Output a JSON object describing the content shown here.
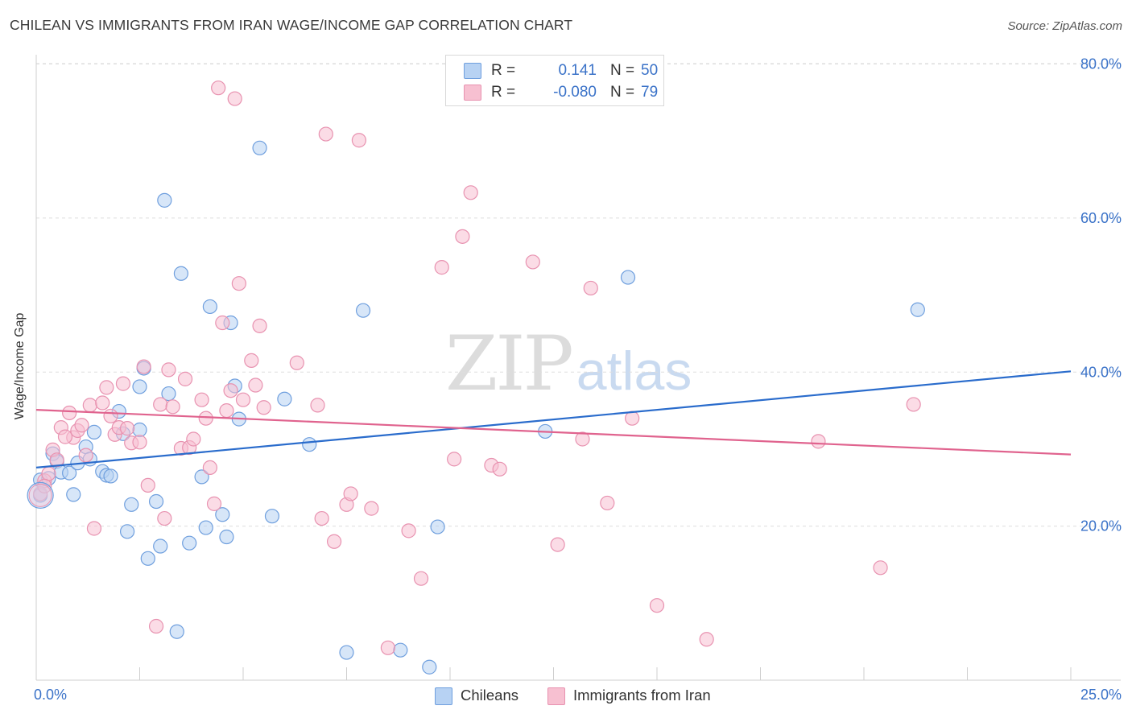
{
  "header": {
    "title": "CHILEAN VS IMMIGRANTS FROM IRAN WAGE/INCOME GAP CORRELATION CHART",
    "source": "Source: ZipAtlas.com"
  },
  "watermark": {
    "zip": "ZIP",
    "atlas": "atlas"
  },
  "legend": {
    "series1": {
      "r_label": "R =",
      "r_value": "0.141",
      "n_label": "N =",
      "n_value": "50"
    },
    "series2": {
      "r_label": "R =",
      "r_value": "-0.080",
      "n_label": "N =",
      "n_value": "79"
    }
  },
  "bottom_legend": {
    "series1": "Chileans",
    "series2": "Immigrants from Iran"
  },
  "colors": {
    "blue_fill": "#b7d2f3",
    "blue_stroke": "#6f9fde",
    "blue_line": "#2a6ccc",
    "pink_fill": "#f7c0d1",
    "pink_stroke": "#e892b0",
    "pink_line": "#e0638e",
    "grid": "#dddddd",
    "axis_text": "#3a72c8"
  },
  "chart_data": {
    "type": "scatter",
    "title": "CHILEAN VS IMMIGRANTS FROM IRAN WAGE/INCOME GAP CORRELATION CHART",
    "xlabel": "",
    "ylabel": "Wage/Income Gap",
    "xlim": [
      0,
      25
    ],
    "ylim": [
      0,
      82
    ],
    "x_tick_labels": [
      "0.0%",
      "25.0%"
    ],
    "y_ticks": [
      20,
      40,
      60,
      80
    ],
    "y_tick_labels": [
      "20.0%",
      "40.0%",
      "60.0%",
      "80.0%"
    ],
    "grid": true,
    "series": [
      {
        "name": "Chileans",
        "r": 0.141,
        "n": 50,
        "trend": {
          "x": [
            0,
            25
          ],
          "y": [
            27.6,
            40.1
          ]
        },
        "points": [
          [
            0.1,
            24.0
          ],
          [
            0.1,
            26.0
          ],
          [
            0.3,
            26.2
          ],
          [
            0.4,
            29.4
          ],
          [
            0.5,
            28.4
          ],
          [
            0.6,
            27.0
          ],
          [
            0.8,
            26.9
          ],
          [
            0.9,
            24.1
          ],
          [
            1.0,
            28.2
          ],
          [
            1.2,
            30.3
          ],
          [
            1.3,
            28.7
          ],
          [
            1.4,
            32.2
          ],
          [
            1.6,
            27.1
          ],
          [
            1.7,
            26.6
          ],
          [
            1.8,
            26.5
          ],
          [
            2.0,
            34.9
          ],
          [
            2.1,
            32.0
          ],
          [
            2.2,
            19.3
          ],
          [
            2.3,
            22.8
          ],
          [
            2.5,
            32.5
          ],
          [
            2.5,
            38.1
          ],
          [
            2.6,
            40.5
          ],
          [
            2.7,
            15.8
          ],
          [
            2.9,
            23.2
          ],
          [
            3.0,
            17.4
          ],
          [
            3.1,
            62.3
          ],
          [
            3.2,
            37.2
          ],
          [
            3.4,
            6.3
          ],
          [
            3.5,
            52.8
          ],
          [
            3.7,
            17.8
          ],
          [
            4.0,
            26.4
          ],
          [
            4.1,
            19.8
          ],
          [
            4.2,
            48.5
          ],
          [
            4.5,
            21.5
          ],
          [
            4.6,
            18.6
          ],
          [
            4.7,
            46.4
          ],
          [
            4.8,
            38.2
          ],
          [
            4.9,
            33.9
          ],
          [
            5.4,
            69.1
          ],
          [
            5.7,
            21.3
          ],
          [
            6.0,
            36.5
          ],
          [
            6.6,
            30.6
          ],
          [
            7.5,
            3.6
          ],
          [
            7.9,
            48.0
          ],
          [
            8.8,
            3.9
          ],
          [
            9.5,
            1.7
          ],
          [
            9.7,
            19.9
          ],
          [
            12.3,
            32.3
          ],
          [
            14.3,
            52.3
          ],
          [
            21.3,
            48.1
          ]
        ]
      },
      {
        "name": "Immigrants from Iran",
        "r": -0.08,
        "n": 79,
        "trend": {
          "x": [
            0,
            25
          ],
          "y": [
            35.1,
            29.3
          ]
        },
        "points": [
          [
            0.1,
            24.2
          ],
          [
            0.2,
            25.9
          ],
          [
            0.3,
            26.8
          ],
          [
            0.4,
            29.9
          ],
          [
            0.5,
            28.6
          ],
          [
            0.6,
            32.8
          ],
          [
            0.8,
            34.7
          ],
          [
            0.9,
            31.5
          ],
          [
            1.0,
            32.4
          ],
          [
            1.1,
            33.1
          ],
          [
            1.2,
            29.2
          ],
          [
            1.3,
            35.7
          ],
          [
            1.4,
            19.7
          ],
          [
            1.6,
            36.0
          ],
          [
            1.7,
            38.0
          ],
          [
            1.8,
            34.3
          ],
          [
            1.9,
            31.9
          ],
          [
            2.0,
            32.8
          ],
          [
            2.1,
            38.5
          ],
          [
            2.2,
            32.7
          ],
          [
            2.3,
            30.8
          ],
          [
            2.5,
            30.9
          ],
          [
            2.6,
            40.7
          ],
          [
            2.7,
            25.3
          ],
          [
            2.9,
            7.0
          ],
          [
            3.0,
            35.8
          ],
          [
            3.1,
            21.0
          ],
          [
            3.2,
            40.3
          ],
          [
            3.3,
            35.5
          ],
          [
            3.5,
            30.1
          ],
          [
            3.6,
            39.1
          ],
          [
            3.7,
            30.2
          ],
          [
            3.8,
            31.3
          ],
          [
            4.0,
            36.4
          ],
          [
            4.1,
            34.0
          ],
          [
            4.2,
            27.6
          ],
          [
            4.3,
            22.9
          ],
          [
            4.4,
            76.9
          ],
          [
            4.5,
            46.4
          ],
          [
            4.6,
            35.0
          ],
          [
            4.7,
            37.6
          ],
          [
            4.8,
            75.5
          ],
          [
            4.9,
            51.5
          ],
          [
            5.0,
            36.4
          ],
          [
            5.2,
            41.5
          ],
          [
            5.3,
            38.3
          ],
          [
            5.4,
            46.0
          ],
          [
            5.5,
            35.4
          ],
          [
            6.3,
            41.2
          ],
          [
            6.8,
            35.7
          ],
          [
            6.9,
            21.0
          ],
          [
            7.0,
            70.9
          ],
          [
            7.2,
            18.0
          ],
          [
            7.5,
            22.8
          ],
          [
            7.6,
            24.2
          ],
          [
            7.8,
            70.1
          ],
          [
            8.1,
            22.3
          ],
          [
            8.5,
            4.2
          ],
          [
            9.0,
            19.4
          ],
          [
            9.3,
            13.2
          ],
          [
            9.8,
            53.6
          ],
          [
            10.1,
            28.7
          ],
          [
            10.3,
            57.6
          ],
          [
            10.5,
            63.3
          ],
          [
            11.0,
            27.9
          ],
          [
            11.2,
            27.4
          ],
          [
            12.0,
            54.3
          ],
          [
            12.6,
            17.6
          ],
          [
            13.2,
            31.3
          ],
          [
            13.4,
            50.9
          ],
          [
            13.8,
            23.0
          ],
          [
            14.4,
            34.0
          ],
          [
            15.0,
            9.7
          ],
          [
            16.2,
            5.3
          ],
          [
            18.9,
            31.0
          ],
          [
            20.4,
            14.6
          ],
          [
            21.2,
            35.8
          ],
          [
            0.2,
            25.2
          ],
          [
            0.7,
            31.6
          ]
        ]
      }
    ]
  }
}
